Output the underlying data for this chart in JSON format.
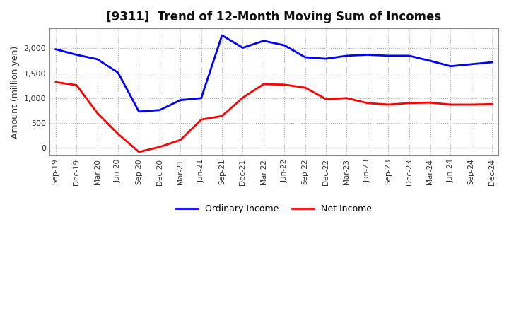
{
  "title": "[9311]  Trend of 12-Month Moving Sum of Incomes",
  "ylabel": "Amount (million yen)",
  "labels": [
    "Sep-19",
    "Dec-19",
    "Mar-20",
    "Jun-20",
    "Sep-20",
    "Dec-20",
    "Mar-21",
    "Jun-21",
    "Sep-21",
    "Dec-21",
    "Mar-22",
    "Jun-22",
    "Sep-22",
    "Dec-22",
    "Mar-23",
    "Jun-23",
    "Sep-23",
    "Dec-23",
    "Mar-24",
    "Jun-24",
    "Sep-24",
    "Dec-24"
  ],
  "ordinary_income": [
    1980,
    1870,
    1780,
    1510,
    730,
    760,
    960,
    1000,
    2260,
    2010,
    2150,
    2060,
    1820,
    1790,
    1850,
    1870,
    1850,
    1850,
    1750,
    1640,
    1680,
    1720
  ],
  "net_income": [
    1320,
    1260,
    700,
    280,
    -80,
    20,
    160,
    570,
    640,
    1010,
    1280,
    1270,
    1210,
    980,
    1000,
    900,
    870,
    900,
    910,
    870,
    870,
    880
  ],
  "ordinary_color": "#0000ff",
  "net_color": "#ff0000",
  "ylim": [
    -150,
    2400
  ],
  "yticks": [
    0,
    500,
    1000,
    1500,
    2000
  ],
  "grid_color": "#aaaaaa",
  "legend_ordinary": "Ordinary Income",
  "legend_net": "Net Income"
}
